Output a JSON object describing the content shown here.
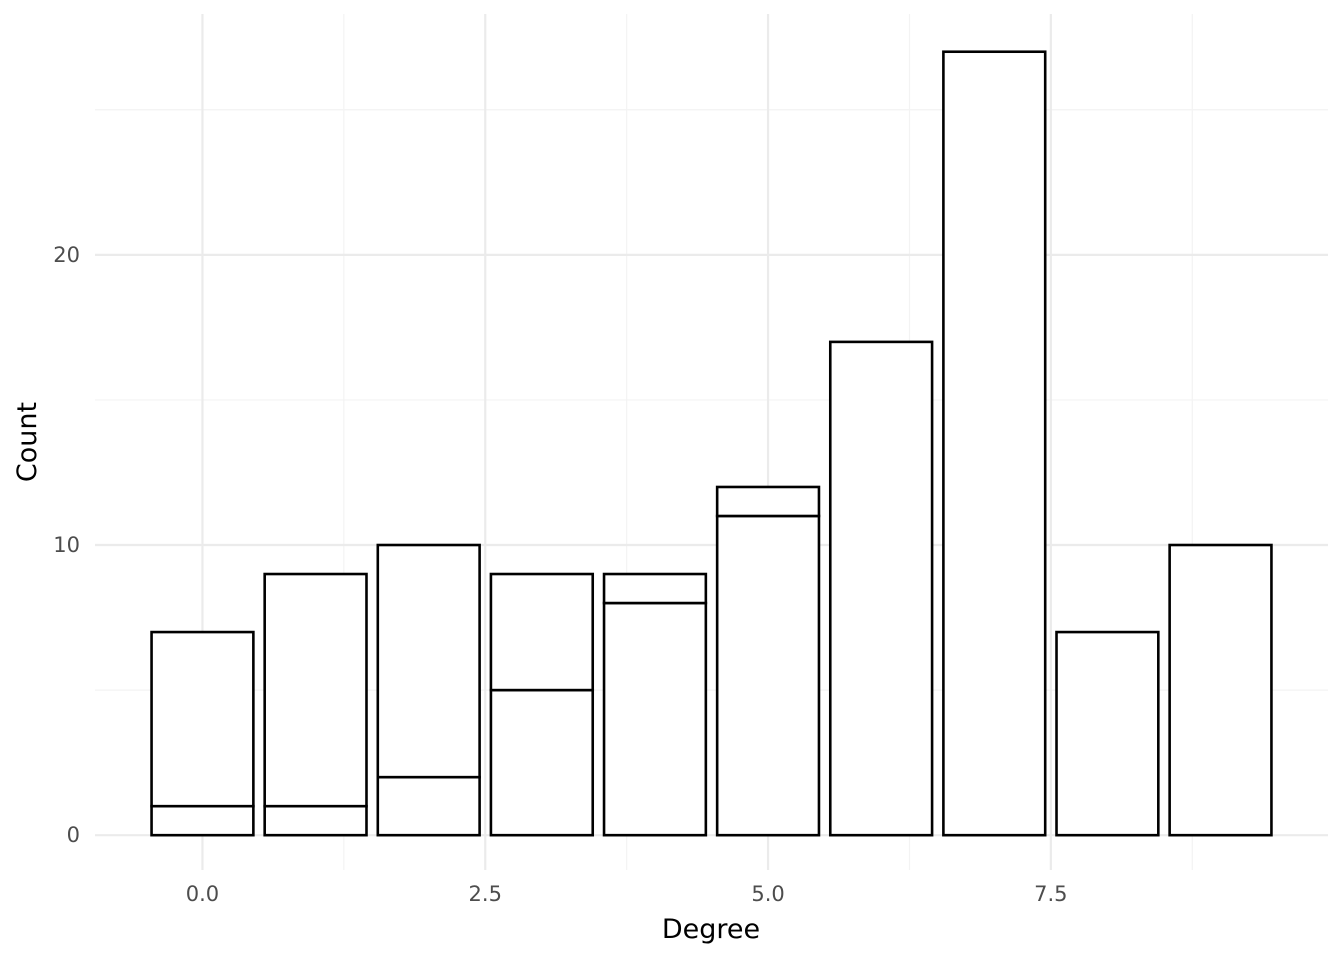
{
  "chart_data": {
    "type": "bar",
    "xlabel": "Degree",
    "ylabel": "Count",
    "xlim": [
      -0.95,
      9.95
    ],
    "ylim": [
      -1.2,
      28.3
    ],
    "x_ticks": [
      0.0,
      2.5,
      5.0,
      7.5
    ],
    "x_tick_labels": [
      "0.0",
      "2.5",
      "5.0",
      "7.5"
    ],
    "y_ticks": [
      0,
      10,
      20
    ],
    "y_tick_labels": [
      "0",
      "10",
      "20"
    ],
    "x_minor_ticks": [
      1.25,
      3.75,
      6.25,
      8.75
    ],
    "y_minor_ticks": [
      5,
      15,
      25
    ],
    "grid": true,
    "stacked": true,
    "bar_width": 0.9,
    "x": [
      0,
      1,
      2,
      3,
      4,
      5,
      6,
      7,
      8,
      9
    ],
    "series": [
      {
        "values": [
          1,
          1,
          2,
          5,
          8,
          11,
          17,
          27,
          7,
          10
        ]
      },
      {
        "values": [
          6,
          8,
          8,
          4,
          1,
          1,
          0,
          0,
          0,
          0
        ]
      }
    ]
  }
}
